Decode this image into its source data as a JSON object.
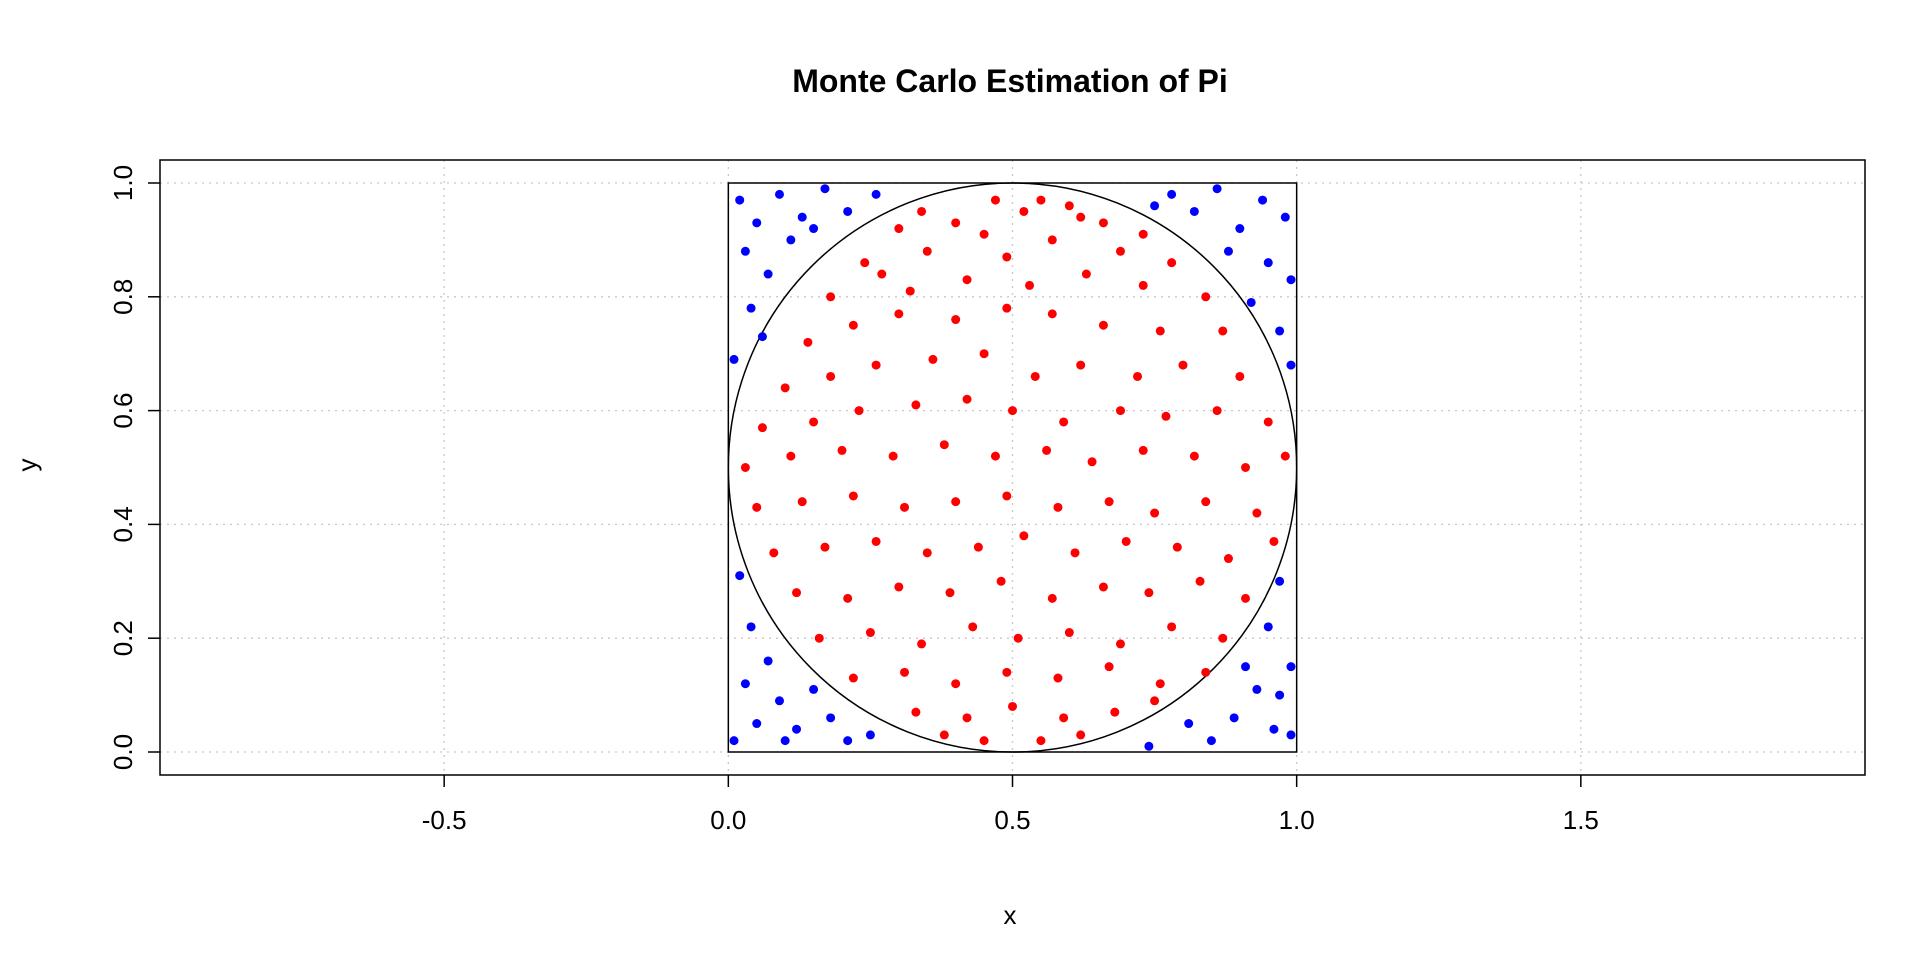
{
  "chart_data": {
    "type": "scatter",
    "title": "Monte Carlo Estimation of Pi",
    "xlabel": "x",
    "ylabel": "y",
    "xlim": [
      -1,
      2
    ],
    "ylim": [
      0,
      1
    ],
    "x_ticks": [
      -0.5,
      0.0,
      0.5,
      1.0,
      1.5
    ],
    "x_tick_labels": [
      "-0.5",
      "0.0",
      "0.5",
      "1.0",
      "1.5"
    ],
    "y_ticks": [
      0.0,
      0.2,
      0.4,
      0.6,
      0.8,
      1.0
    ],
    "y_tick_labels": [
      "0.0",
      "0.2",
      "0.4",
      "0.6",
      "0.8",
      "1.0"
    ],
    "grid": true,
    "grid_style": "dotted",
    "box": {
      "x": [
        0,
        1
      ],
      "y": [
        0,
        1
      ]
    },
    "circle": {
      "center": [
        0.5,
        0.5
      ],
      "radius": 0.5
    },
    "colors": {
      "inside": "#ff0000",
      "outside": "#0000ff",
      "grid": "#c8c8c8",
      "frame": "#000000"
    },
    "series": [
      {
        "color": "#ff0000",
        "points": [
          [
            0.47,
            0.97
          ],
          [
            0.55,
            0.97
          ],
          [
            0.6,
            0.96
          ],
          [
            0.34,
            0.95
          ],
          [
            0.52,
            0.95
          ],
          [
            0.62,
            0.94
          ],
          [
            0.66,
            0.93
          ],
          [
            0.3,
            0.92
          ],
          [
            0.4,
            0.93
          ],
          [
            0.57,
            0.9
          ],
          [
            0.45,
            0.91
          ],
          [
            0.73,
            0.91
          ],
          [
            0.24,
            0.86
          ],
          [
            0.35,
            0.88
          ],
          [
            0.49,
            0.87
          ],
          [
            0.69,
            0.88
          ],
          [
            0.78,
            0.86
          ],
          [
            0.18,
            0.8
          ],
          [
            0.27,
            0.84
          ],
          [
            0.32,
            0.81
          ],
          [
            0.42,
            0.83
          ],
          [
            0.53,
            0.82
          ],
          [
            0.63,
            0.84
          ],
          [
            0.73,
            0.82
          ],
          [
            0.84,
            0.8
          ],
          [
            0.14,
            0.72
          ],
          [
            0.22,
            0.75
          ],
          [
            0.3,
            0.77
          ],
          [
            0.4,
            0.76
          ],
          [
            0.49,
            0.78
          ],
          [
            0.57,
            0.77
          ],
          [
            0.66,
            0.75
          ],
          [
            0.76,
            0.74
          ],
          [
            0.87,
            0.74
          ],
          [
            0.1,
            0.64
          ],
          [
            0.18,
            0.66
          ],
          [
            0.26,
            0.68
          ],
          [
            0.36,
            0.69
          ],
          [
            0.45,
            0.7
          ],
          [
            0.54,
            0.66
          ],
          [
            0.62,
            0.68
          ],
          [
            0.72,
            0.66
          ],
          [
            0.8,
            0.68
          ],
          [
            0.9,
            0.66
          ],
          [
            0.06,
            0.57
          ],
          [
            0.15,
            0.58
          ],
          [
            0.23,
            0.6
          ],
          [
            0.33,
            0.61
          ],
          [
            0.42,
            0.62
          ],
          [
            0.5,
            0.6
          ],
          [
            0.59,
            0.58
          ],
          [
            0.69,
            0.6
          ],
          [
            0.77,
            0.59
          ],
          [
            0.86,
            0.6
          ],
          [
            0.95,
            0.58
          ],
          [
            0.03,
            0.5
          ],
          [
            0.11,
            0.52
          ],
          [
            0.2,
            0.53
          ],
          [
            0.29,
            0.52
          ],
          [
            0.38,
            0.54
          ],
          [
            0.47,
            0.52
          ],
          [
            0.56,
            0.53
          ],
          [
            0.64,
            0.51
          ],
          [
            0.73,
            0.53
          ],
          [
            0.82,
            0.52
          ],
          [
            0.91,
            0.5
          ],
          [
            0.98,
            0.52
          ],
          [
            0.05,
            0.43
          ],
          [
            0.13,
            0.44
          ],
          [
            0.22,
            0.45
          ],
          [
            0.31,
            0.43
          ],
          [
            0.4,
            0.44
          ],
          [
            0.49,
            0.45
          ],
          [
            0.58,
            0.43
          ],
          [
            0.67,
            0.44
          ],
          [
            0.75,
            0.42
          ],
          [
            0.84,
            0.44
          ],
          [
            0.93,
            0.42
          ],
          [
            0.08,
            0.35
          ],
          [
            0.17,
            0.36
          ],
          [
            0.26,
            0.37
          ],
          [
            0.35,
            0.35
          ],
          [
            0.44,
            0.36
          ],
          [
            0.52,
            0.38
          ],
          [
            0.61,
            0.35
          ],
          [
            0.7,
            0.37
          ],
          [
            0.79,
            0.36
          ],
          [
            0.88,
            0.34
          ],
          [
            0.96,
            0.37
          ],
          [
            0.12,
            0.28
          ],
          [
            0.21,
            0.27
          ],
          [
            0.3,
            0.29
          ],
          [
            0.39,
            0.28
          ],
          [
            0.48,
            0.3
          ],
          [
            0.57,
            0.27
          ],
          [
            0.66,
            0.29
          ],
          [
            0.74,
            0.28
          ],
          [
            0.83,
            0.3
          ],
          [
            0.91,
            0.27
          ],
          [
            0.16,
            0.2
          ],
          [
            0.25,
            0.21
          ],
          [
            0.34,
            0.19
          ],
          [
            0.43,
            0.22
          ],
          [
            0.51,
            0.2
          ],
          [
            0.6,
            0.21
          ],
          [
            0.69,
            0.19
          ],
          [
            0.78,
            0.22
          ],
          [
            0.87,
            0.2
          ],
          [
            0.22,
            0.13
          ],
          [
            0.31,
            0.14
          ],
          [
            0.4,
            0.12
          ],
          [
            0.49,
            0.14
          ],
          [
            0.58,
            0.13
          ],
          [
            0.67,
            0.15
          ],
          [
            0.76,
            0.12
          ],
          [
            0.84,
            0.14
          ],
          [
            0.33,
            0.07
          ],
          [
            0.42,
            0.06
          ],
          [
            0.5,
            0.08
          ],
          [
            0.59,
            0.06
          ],
          [
            0.68,
            0.07
          ],
          [
            0.75,
            0.09
          ],
          [
            0.45,
            0.02
          ],
          [
            0.55,
            0.02
          ],
          [
            0.62,
            0.03
          ],
          [
            0.38,
            0.03
          ]
        ]
      },
      {
        "color": "#0000ff",
        "points": [
          [
            0.02,
            0.97
          ],
          [
            0.05,
            0.93
          ],
          [
            0.09,
            0.98
          ],
          [
            0.13,
            0.94
          ],
          [
            0.17,
            0.99
          ],
          [
            0.21,
            0.95
          ],
          [
            0.03,
            0.88
          ],
          [
            0.07,
            0.84
          ],
          [
            0.11,
            0.9
          ],
          [
            0.04,
            0.78
          ],
          [
            0.01,
            0.69
          ],
          [
            0.06,
            0.73
          ],
          [
            0.15,
            0.92
          ],
          [
            0.26,
            0.98
          ],
          [
            0.78,
            0.98
          ],
          [
            0.82,
            0.95
          ],
          [
            0.86,
            0.99
          ],
          [
            0.9,
            0.92
          ],
          [
            0.94,
            0.97
          ],
          [
            0.98,
            0.94
          ],
          [
            0.88,
            0.88
          ],
          [
            0.95,
            0.86
          ],
          [
            0.99,
            0.83
          ],
          [
            0.92,
            0.79
          ],
          [
            0.97,
            0.74
          ],
          [
            0.99,
            0.68
          ],
          [
            0.75,
            0.96
          ],
          [
            0.02,
            0.31
          ],
          [
            0.04,
            0.22
          ],
          [
            0.07,
            0.16
          ],
          [
            0.03,
            0.12
          ],
          [
            0.09,
            0.09
          ],
          [
            0.05,
            0.05
          ],
          [
            0.12,
            0.04
          ],
          [
            0.15,
            0.11
          ],
          [
            0.18,
            0.06
          ],
          [
            0.21,
            0.02
          ],
          [
            0.1,
            0.02
          ],
          [
            0.01,
            0.02
          ],
          [
            0.25,
            0.03
          ],
          [
            0.97,
            0.3
          ],
          [
            0.95,
            0.22
          ],
          [
            0.99,
            0.15
          ],
          [
            0.93,
            0.11
          ],
          [
            0.89,
            0.06
          ],
          [
            0.96,
            0.04
          ],
          [
            0.85,
            0.02
          ],
          [
            0.99,
            0.03
          ],
          [
            0.91,
            0.15
          ],
          [
            0.81,
            0.05
          ],
          [
            0.97,
            0.1
          ],
          [
            0.74,
            0.01
          ]
        ]
      }
    ]
  }
}
